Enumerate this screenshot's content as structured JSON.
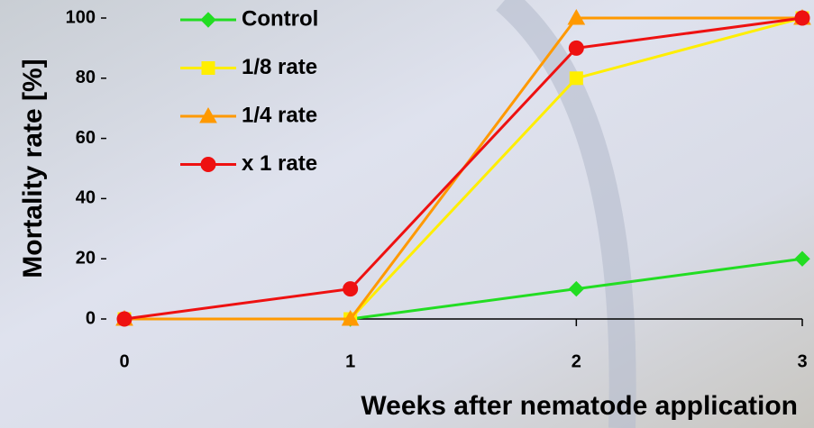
{
  "chart_data": {
    "type": "line",
    "x_label": "Weeks after nematode application",
    "y_label": "Mortality rate [%]",
    "x": [
      0,
      1,
      2,
      3
    ],
    "xlim": [
      0,
      3
    ],
    "xticks": [
      0,
      1,
      2,
      3
    ],
    "ylim": [
      0,
      100
    ],
    "yticks": [
      0,
      20,
      40,
      60,
      80,
      100
    ],
    "legend": "top-left",
    "series": [
      {
        "name": "Control",
        "color": "#22dd22",
        "marker": "diamond",
        "values": [
          0,
          0,
          10,
          20
        ]
      },
      {
        "name": "1/8 rate",
        "color": "#ffee00",
        "marker": "square",
        "values": [
          0,
          0,
          80,
          100
        ]
      },
      {
        "name": "1/4 rate",
        "color": "#ff9900",
        "marker": "triangle",
        "values": [
          0,
          0,
          100,
          100
        ]
      },
      {
        "name": "x 1 rate",
        "color": "#ee1111",
        "marker": "circle",
        "values": [
          0,
          10,
          90,
          100
        ]
      }
    ]
  }
}
